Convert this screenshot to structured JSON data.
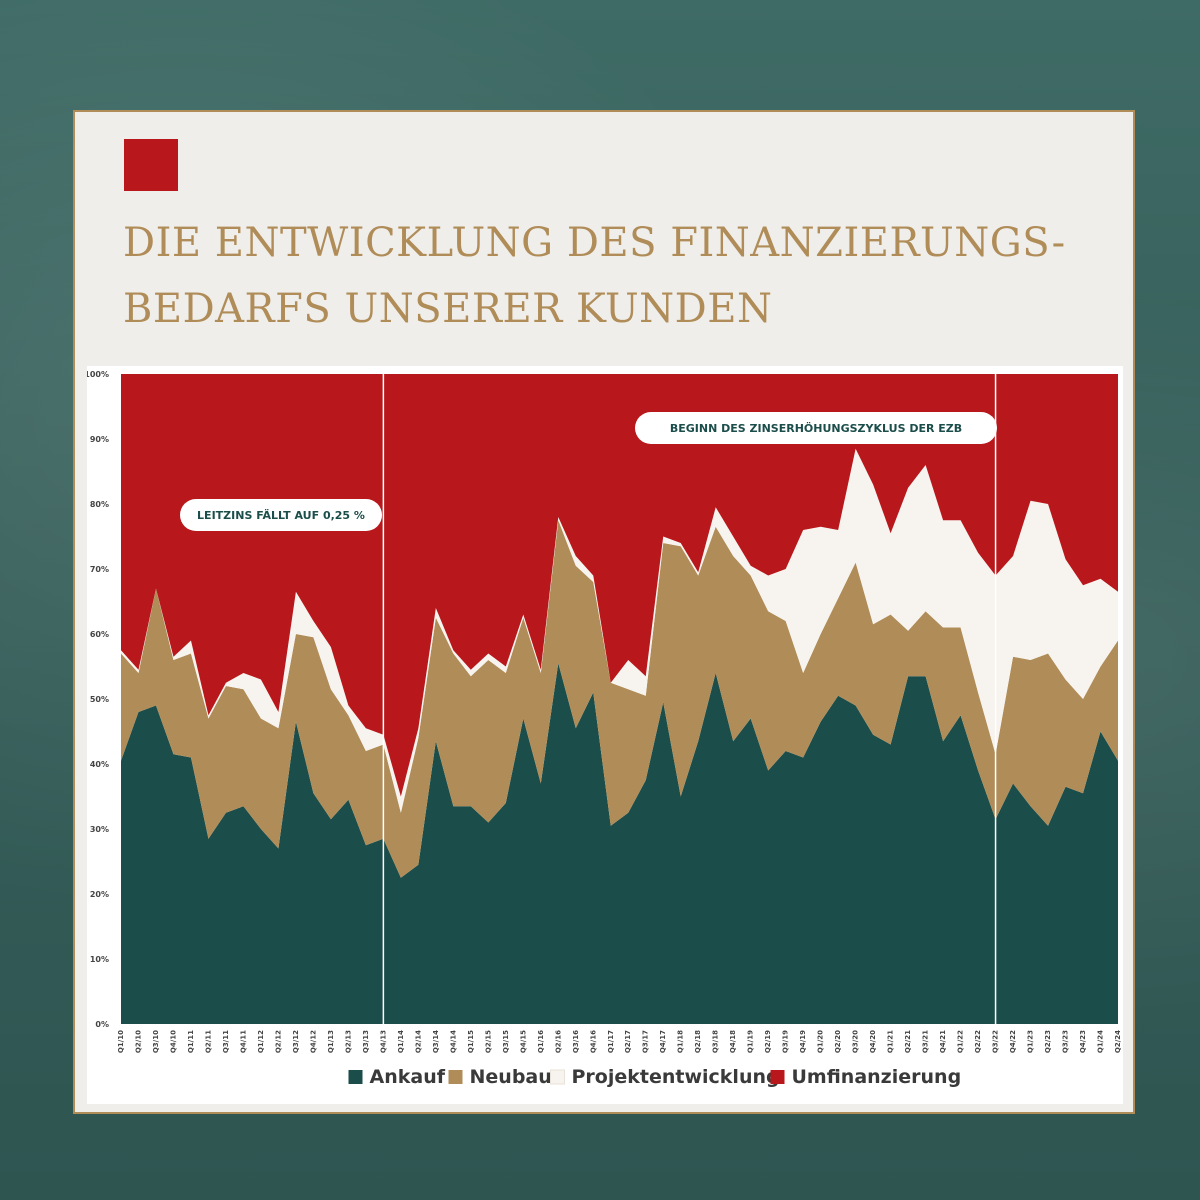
{
  "title": {
    "line1": "DIE ENTWICKLUNG DES FINANZIERUNGS-",
    "line2": "BEDARFS UNSERER KUNDEN"
  },
  "colors": {
    "Ankauf": "#1b4d4a",
    "Neubau": "#b08d58",
    "Projektentwicklung": "#f7f3ee",
    "Umfinanzierung": "#b8171b",
    "title": "#b08d58",
    "accent": "#b8171b"
  },
  "annotations": [
    {
      "text": "LEITZINS FÄLLT AUF 0,25 %",
      "at": "Q4/13"
    },
    {
      "text": "BEGINN DES ZINSERHÖHUNGSZYKLUS DER EZB",
      "at": "Q3/22"
    }
  ],
  "chart_data": {
    "type": "area",
    "stacked": true,
    "ylim": [
      0,
      100
    ],
    "yticks": [
      "0%",
      "10%",
      "20%",
      "30%",
      "40%",
      "50%",
      "60%",
      "70%",
      "80%",
      "90%",
      "100%"
    ],
    "legend_position": "bottom",
    "categories": [
      "Q1/10",
      "Q2/10",
      "Q3/10",
      "Q4/10",
      "Q1/11",
      "Q2/11",
      "Q3/11",
      "Q4/11",
      "Q1/12",
      "Q2/12",
      "Q3/12",
      "Q4/12",
      "Q1/13",
      "Q2/13",
      "Q3/13",
      "Q4/13",
      "Q1/14",
      "Q2/14",
      "Q3/14",
      "Q4/14",
      "Q1/15",
      "Q2/15",
      "Q3/15",
      "Q4/15",
      "Q1/16",
      "Q2/16",
      "Q3/16",
      "Q4/16",
      "Q1/17",
      "Q2/17",
      "Q3/17",
      "Q4/17",
      "Q1/18",
      "Q2/18",
      "Q3/18",
      "Q4/18",
      "Q1/19",
      "Q2/19",
      "Q3/19",
      "Q4/19",
      "Q1/20",
      "Q2/20",
      "Q3/20",
      "Q4/20",
      "Q1/21",
      "Q2/21",
      "Q3/21",
      "Q4/21",
      "Q1/22",
      "Q2/22",
      "Q3/22",
      "Q4/22",
      "Q1/23",
      "Q2/23",
      "Q3/23",
      "Q4/23",
      "Q1/24",
      "Q2/24"
    ],
    "series": [
      {
        "name": "Ankauf",
        "values": [
          40.5,
          48,
          49,
          41.5,
          41,
          28.5,
          32.5,
          33.5,
          30,
          27,
          46.5,
          35.5,
          31.5,
          34.5,
          27.5,
          28.5,
          22.5,
          24.5,
          43.5,
          33.5,
          33.5,
          31,
          34,
          47,
          37,
          55.5,
          45.5,
          51,
          30.5,
          32.5,
          37.5,
          49.5,
          35,
          43.5,
          54,
          43.5,
          47,
          39,
          42,
          41,
          46.5,
          50.5,
          49,
          44.5,
          43,
          53.5,
          53.5,
          43.5,
          47.5,
          39,
          31.5,
          37,
          33.5,
          30.5,
          36.5,
          35.5,
          45,
          40.5
        ]
      },
      {
        "name": "Neubau",
        "values": [
          16.5,
          6,
          18,
          14.5,
          16,
          18.5,
          19.5,
          18,
          17,
          18.5,
          13.5,
          24,
          20,
          13,
          14.5,
          14.5,
          10,
          19.5,
          19,
          23.5,
          20,
          25,
          20,
          15.5,
          17,
          22,
          25,
          17,
          22,
          19,
          13,
          24.5,
          38.5,
          25.5,
          22.5,
          28.5,
          22,
          24.5,
          20,
          13,
          13.5,
          15,
          22,
          17,
          20,
          7,
          10,
          17.5,
          13.5,
          12,
          10,
          19.5,
          22.5,
          26.5,
          16.5,
          14.5,
          10,
          18.5
        ]
      },
      {
        "name": "Projektentwicklung",
        "values": [
          0.5,
          0.5,
          0,
          0.5,
          2,
          0.5,
          0.5,
          2.5,
          6,
          2.5,
          6.5,
          2.5,
          6.5,
          1.5,
          3.5,
          1.5,
          2.5,
          1.5,
          1.5,
          0.5,
          1,
          1,
          1,
          0.5,
          0.5,
          0.5,
          1.5,
          1,
          0,
          4.5,
          3,
          1,
          0.5,
          0.5,
          3,
          3,
          1.5,
          5.5,
          8,
          22,
          16.5,
          10.5,
          17.5,
          21.5,
          12.5,
          22,
          22.5,
          16.5,
          16.5,
          21.5,
          27.5,
          15.5,
          24.5,
          23,
          18.5,
          17.5,
          13.5,
          7.5
        ]
      },
      {
        "name": "Umfinanzierung",
        "values": [
          42.5,
          45.5,
          33,
          43.5,
          41,
          52.5,
          47.5,
          46,
          47,
          52,
          33.5,
          38,
          42,
          51,
          54.5,
          55.5,
          65,
          54.5,
          36,
          42.5,
          45.5,
          43,
          45,
          37,
          45.5,
          22,
          28,
          31,
          47.5,
          44,
          46.5,
          25,
          26,
          30.5,
          20.5,
          25,
          29.5,
          31,
          30,
          24,
          23.5,
          24,
          11.5,
          17,
          24.5,
          17.5,
          14,
          22.5,
          22.5,
          27.5,
          31,
          28,
          19.5,
          20,
          28.5,
          32.5,
          31.5,
          33.5
        ]
      }
    ],
    "vlines_at": [
      "Q4/13",
      "Q3/22"
    ]
  }
}
